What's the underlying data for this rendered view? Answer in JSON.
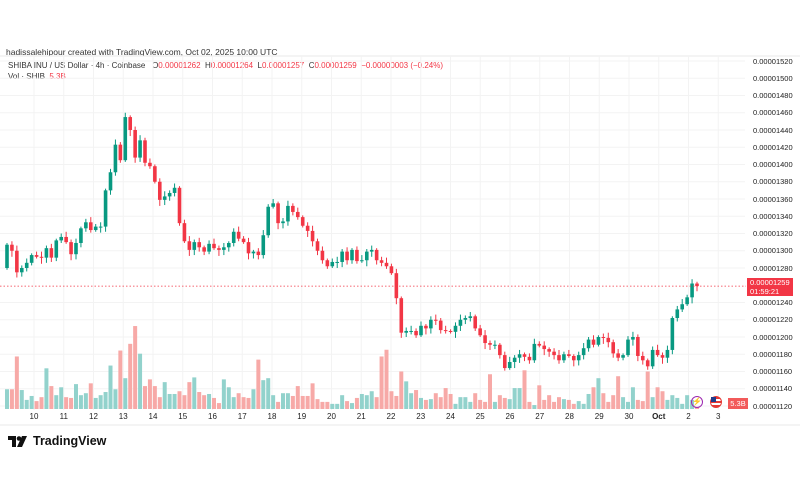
{
  "credit": "hadissalehipour created with TradingView.com, Oct 02, 2025 10:00 UTC",
  "legend": {
    "symbol": "SHIBA INU / US Dollar · 4h · Coinbase",
    "o_label": "O",
    "o": "0.00001262",
    "h_label": "H",
    "h": "0.00001264",
    "l_label": "L",
    "l": "0.00001257",
    "c_label": "C",
    "c": "0.00001259",
    "change": "−0.00000003 (−0.24%)"
  },
  "volume_legend": {
    "label": "Vol · SHIB",
    "value": "5.3B"
  },
  "price_axis": [
    "0.00001520",
    "0.00001500",
    "0.00001480",
    "0.00001460",
    "0.00001440",
    "0.00001420",
    "0.00001400",
    "0.00001380",
    "0.00001360",
    "0.00001340",
    "0.00001320",
    "0.00001300",
    "0.00001280",
    "0.00001240",
    "0.00001220",
    "0.00001200",
    "0.00001180",
    "0.00001160",
    "0.00001140",
    "0.00001120"
  ],
  "current_price": {
    "value": "0.00001259",
    "countdown": "01:59:21"
  },
  "current_volume": "5.3B",
  "time_axis": [
    "10",
    "11",
    "12",
    "13",
    "14",
    "15",
    "16",
    "17",
    "18",
    "19",
    "20",
    "21",
    "22",
    "23",
    "24",
    "25",
    "26",
    "27",
    "28",
    "29",
    "30",
    "Oct",
    "2",
    "3"
  ],
  "brand": "TradingView",
  "icons": [
    "lightning-icon",
    "us-flag-icon"
  ],
  "colors": {
    "up": "#089981",
    "down": "#f23645",
    "up_vol": "#92d2cc",
    "down_vol": "#f7a9a7"
  },
  "chart_data": {
    "type": "candlestick",
    "price_unit": 1e-08,
    "ylim": [
      1120,
      1520
    ],
    "first_open": 1280,
    "closes": [
      1307,
      1300,
      1275,
      1280,
      1286,
      1295,
      1293,
      1292,
      1303,
      1292,
      1312,
      1316,
      1310,
      1296,
      1309,
      1326,
      1333,
      1324,
      1328,
      1328,
      1370,
      1391,
      1423,
      1405,
      1455,
      1440,
      1408,
      1428,
      1402,
      1398,
      1380,
      1359,
      1363,
      1367,
      1373,
      1332,
      1311,
      1301,
      1310,
      1304,
      1299,
      1308,
      1303,
      1301,
      1304,
      1309,
      1322,
      1314,
      1310,
      1297,
      1299,
      1295,
      1318,
      1351,
      1355,
      1332,
      1334,
      1352,
      1345,
      1339,
      1329,
      1323,
      1311,
      1300,
      1289,
      1282,
      1287,
      1287,
      1299,
      1289,
      1301,
      1288,
      1289,
      1299,
      1301,
      1289,
      1286,
      1282,
      1274,
      1245,
      1205,
      1207,
      1207,
      1202,
      1213,
      1210,
      1220,
      1219,
      1208,
      1207,
      1206,
      1213,
      1220,
      1222,
      1224,
      1210,
      1202,
      1193,
      1191,
      1191,
      1179,
      1164,
      1171,
      1176,
      1180,
      1177,
      1173,
      1192,
      1190,
      1186,
      1183,
      1179,
      1173,
      1180,
      1178,
      1173,
      1179,
      1187,
      1197,
      1191,
      1200,
      1199,
      1194,
      1181,
      1176,
      1179,
      1197,
      1200,
      1178,
      1173,
      1166,
      1185,
      1179,
      1176,
      1185,
      1222,
      1232,
      1238,
      1246,
      1262,
      1259
    ],
    "volume_unit": "B",
    "volumes": [
      50,
      50,
      133,
      48,
      23,
      33,
      20,
      30,
      103,
      58,
      35,
      55,
      30,
      28,
      63,
      35,
      40,
      65,
      28,
      35,
      43,
      110,
      50,
      148,
      78,
      165,
      210,
      140,
      58,
      75,
      58,
      30,
      68,
      38,
      38,
      45,
      35,
      68,
      80,
      43,
      35,
      38,
      28,
      15,
      75,
      55,
      30,
      40,
      30,
      28,
      50,
      125,
      73,
      78,
      35,
      18,
      40,
      40,
      33,
      58,
      33,
      33,
      65,
      25,
      18,
      18,
      13,
      13,
      35,
      20,
      15,
      28,
      38,
      35,
      45,
      30,
      133,
      150,
      45,
      33,
      95,
      70,
      40,
      48,
      28,
      23,
      25,
      40,
      30,
      53,
      38,
      13,
      30,
      30,
      18,
      40,
      23,
      18,
      88,
      18,
      35,
      28,
      25,
      53,
      53,
      98,
      18,
      10,
      60,
      23,
      35,
      18,
      30,
      25,
      23,
      13,
      20,
      13,
      38,
      55,
      78,
      40,
      18,
      35,
      83,
      30,
      18,
      55,
      23,
      20,
      95,
      30,
      55,
      45,
      23,
      35,
      28,
      13,
      35,
      23,
      5.3
    ]
  }
}
